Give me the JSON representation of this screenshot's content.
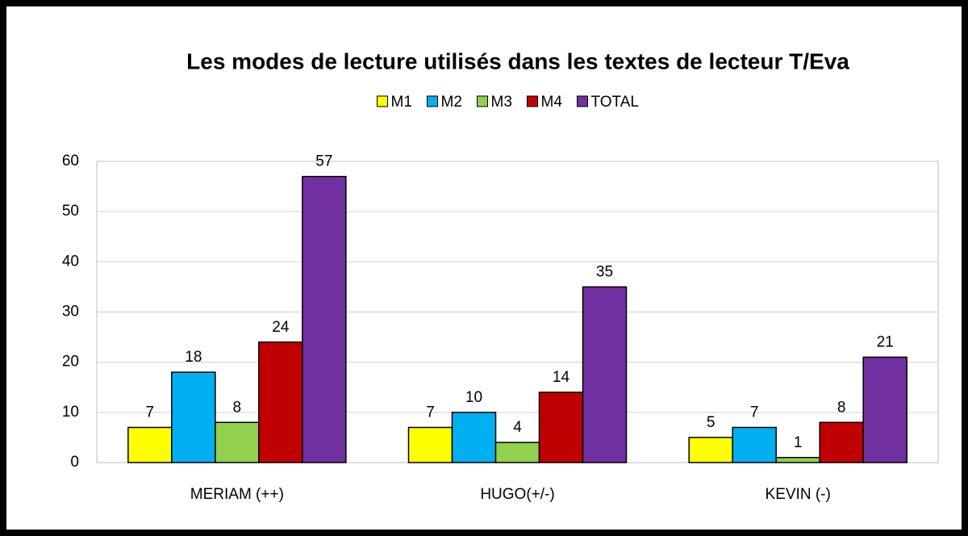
{
  "chart_data": {
    "type": "bar",
    "title": "Les modes de lecture utilisés dans les textes de lecteur T/Eva",
    "categories": [
      "MERIAM (++)",
      "HUGO(+/-)",
      "KEVIN (-)"
    ],
    "series": [
      {
        "name": "M1",
        "color": "#ffff00",
        "values": [
          7,
          7,
          5
        ]
      },
      {
        "name": "M2",
        "color": "#00b0f0",
        "values": [
          18,
          10,
          7
        ]
      },
      {
        "name": "M3",
        "color": "#92d050",
        "values": [
          8,
          4,
          1
        ]
      },
      {
        "name": "M4",
        "color": "#c00000",
        "values": [
          24,
          14,
          8
        ]
      },
      {
        "name": "TOTAL",
        "color": "#7030a0",
        "values": [
          57,
          35,
          21
        ]
      }
    ],
    "ylim": [
      0,
      60
    ],
    "yticks": [
      0,
      10,
      20,
      30,
      40,
      50,
      60
    ],
    "grid": true,
    "legend": "top"
  }
}
